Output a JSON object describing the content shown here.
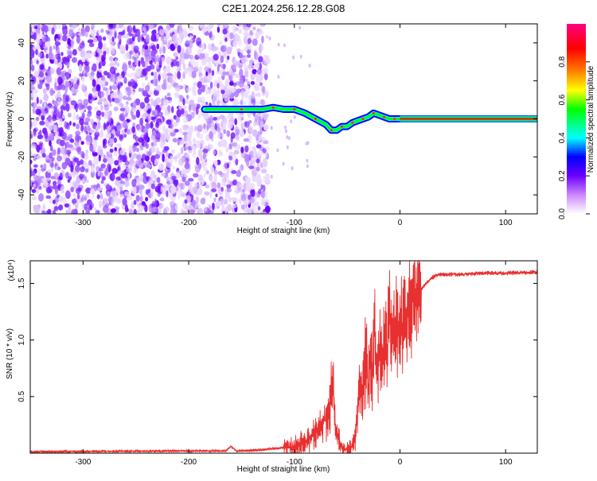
{
  "title": "C2E1.2024.256.12.28.G08",
  "chart_data": [
    {
      "type": "heatmap",
      "xlabel": "Height of straight line (km)",
      "ylabel": "Frequency (Hz)",
      "xlim": [
        -350,
        130
      ],
      "ylim": [
        -50,
        50
      ],
      "x_ticks": [
        -300,
        -200,
        -100,
        0,
        100
      ],
      "x_tick_labels": [
        "-300",
        "-200",
        "-100",
        "0",
        "100"
      ],
      "y_ticks": [
        -40,
        -20,
        0,
        20,
        40
      ],
      "y_tick_labels": [
        "-40",
        "-20",
        "0",
        "20",
        "40"
      ],
      "colorbar": {
        "label": "Normalized spectral amplitude",
        "range": [
          0,
          1
        ],
        "ticks": [
          0.0,
          0.2,
          0.4,
          0.6,
          0.8
        ],
        "tick_labels": [
          "0.0",
          "0.2",
          "0.4",
          "0.6",
          "0.8"
        ],
        "colors": [
          "#ffffff",
          "#cc88ff",
          "#6a00ff",
          "#0000ff",
          "#00ffff",
          "#00ff00",
          "#ffff00",
          "#ff8000",
          "#ff0000",
          "#ff0080"
        ]
      },
      "noise_region_x": [
        -350,
        -125
      ],
      "tracked_line": {
        "x": [
          -185,
          -170,
          -150,
          -130,
          -120,
          -110,
          -100,
          -90,
          -80,
          -70,
          -65,
          -60,
          -55,
          -50,
          -45,
          -40,
          -35,
          -30,
          -25,
          -20,
          -15,
          -10,
          -5,
          0,
          130
        ],
        "y": [
          5,
          5,
          5,
          5,
          6,
          5,
          5,
          3,
          0,
          -3,
          -6,
          -6,
          -4,
          -4,
          -2,
          -1,
          0,
          1,
          3,
          2,
          1,
          0,
          0,
          0,
          0
        ]
      },
      "tracked_line_colors": [
        "#00ffff",
        "#ff0000",
        "#00ff00"
      ]
    },
    {
      "type": "line",
      "xlabel": "Height of straight line (km)",
      "ylabel": "SNR (10 * v/v)",
      "multiplier": "(x10⁴)",
      "xlim": [
        -350,
        130
      ],
      "ylim": [
        0,
        1.7
      ],
      "x_ticks": [
        -300,
        -200,
        -100,
        0,
        100
      ],
      "x_tick_labels": [
        "-300",
        "-200",
        "-100",
        "0",
        "100"
      ],
      "y_ticks": [
        0.5,
        1.0,
        1.5
      ],
      "y_tick_labels": [
        "0.5",
        "1.0",
        "1.5"
      ],
      "color": "#e83030",
      "series": [
        {
          "x": [
            -350,
            -300,
            -250,
            -200,
            -165,
            -160,
            -155,
            -130,
            -110,
            -100,
            -95,
            -90,
            -85,
            -80,
            -75,
            -70,
            -66,
            -64,
            -62,
            -60,
            -58,
            -55,
            -50,
            -45,
            -42,
            -40,
            -38,
            -35,
            -32,
            -30,
            -28,
            -26,
            -24,
            -22,
            -20,
            -18,
            -16,
            -14,
            -12,
            -10,
            -8,
            -6,
            -4,
            -2,
            0,
            5,
            10,
            15,
            20,
            25,
            30,
            35,
            40,
            50,
            60,
            80,
            100,
            130
          ],
          "y": [
            0.012,
            0.015,
            0.018,
            0.02,
            0.02,
            0.06,
            0.02,
            0.03,
            0.05,
            0.06,
            0.09,
            0.11,
            0.13,
            0.18,
            0.25,
            0.3,
            0.45,
            0.7,
            0.3,
            0.2,
            0.12,
            0.05,
            0.03,
            0.05,
            0.15,
            0.4,
            0.7,
            0.55,
            0.85,
            0.6,
            0.9,
            0.7,
            1.1,
            0.65,
            0.85,
            1.0,
            0.8,
            1.2,
            0.8,
            1.45,
            0.95,
            1.05,
            1.2,
            1.05,
            1.1,
            1.2,
            1.3,
            1.38,
            1.45,
            1.5,
            1.55,
            1.57,
            1.58,
            1.58,
            1.58,
            1.59,
            1.59,
            1.6
          ]
        }
      ]
    }
  ]
}
